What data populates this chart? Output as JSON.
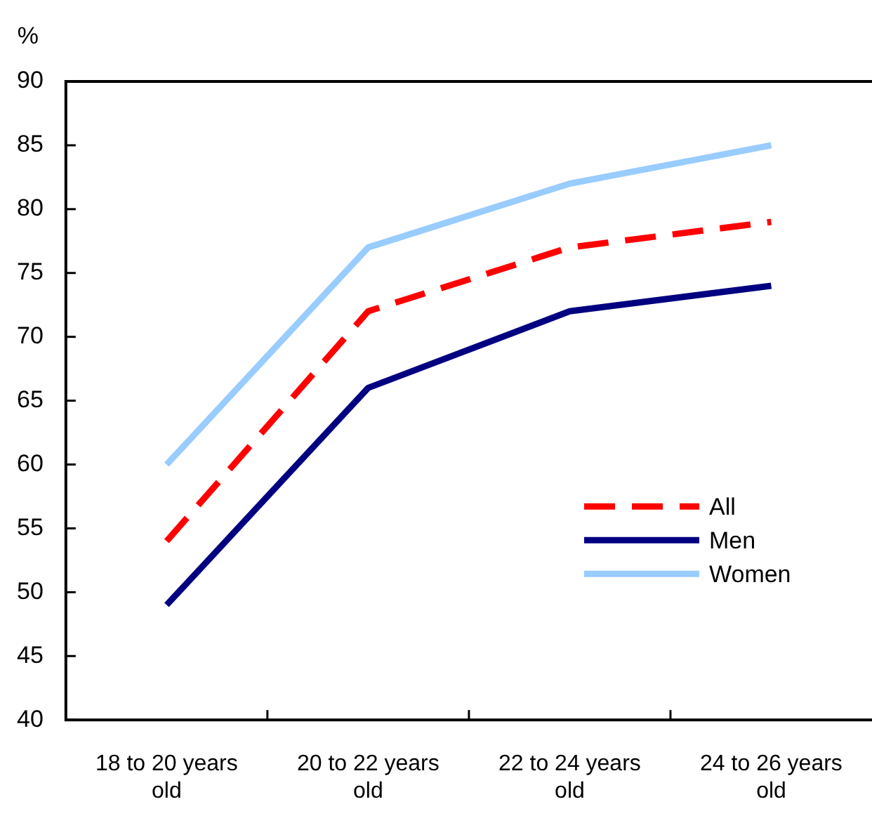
{
  "chart_data": {
    "type": "line",
    "ylabel": "%",
    "categories": [
      "18 to 20 years old",
      "20 to 22 years old",
      "22 to 24 years old",
      "24 to 26 years old"
    ],
    "series": [
      {
        "name": "All",
        "color": "#ff0000",
        "values": [
          54,
          72,
          77,
          79
        ],
        "line_style": "dashed"
      },
      {
        "name": "Men",
        "color": "#000080",
        "values": [
          49,
          66,
          72,
          74
        ]
      },
      {
        "name": "Women",
        "color": "#99ccff",
        "values": [
          60,
          77,
          82,
          85
        ]
      }
    ],
    "ylim": [
      40,
      90
    ],
    "yticks": [
      40,
      45,
      50,
      55,
      60,
      65,
      70,
      75,
      80,
      85,
      90
    ],
    "grid": false,
    "legend": "bottom right",
    "marker": "none",
    "line_style": "solid"
  }
}
